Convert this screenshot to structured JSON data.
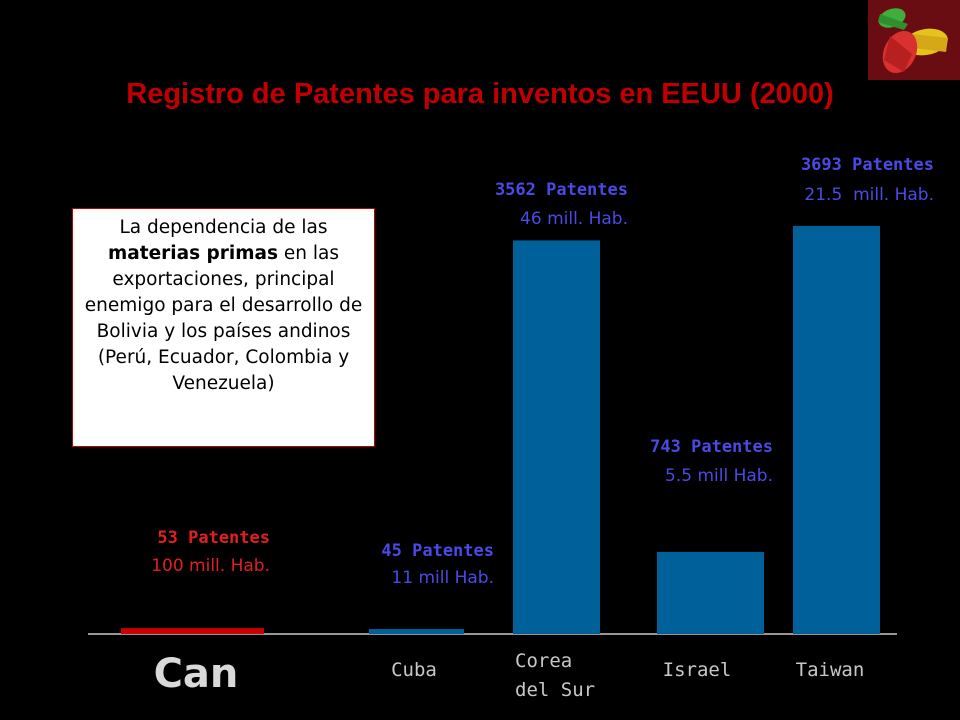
{
  "chart_data": {
    "type": "bar",
    "title": "Registro de Patentes para inventos en EEUU (2000)",
    "xlabel": "",
    "ylabel": "",
    "categories": [
      "Can",
      "Cuba",
      "Corea del Sur",
      "Israel",
      "Taiwan"
    ],
    "category_lines": [
      [
        "Can"
      ],
      [
        "Cuba"
      ],
      [
        "Corea",
        "del Sur"
      ],
      [
        "Israel"
      ],
      [
        "Taiwan"
      ]
    ],
    "values": [
      53,
      45,
      3562,
      743,
      3693
    ],
    "label_line1": [
      "53 Patentes",
      "45 Patentes",
      "3562 Patentes",
      "743 Patentes",
      "3693 Patentes"
    ],
    "label_line2": [
      "100 mill. Hab.",
      "11 mill Hab.",
      "46 mill. Hab.",
      "5.5 mill Hab.",
      "21.5  mill. Hab."
    ],
    "ylim": [
      0,
      4000
    ],
    "grid": false,
    "colors": {
      "can": "#cc0000",
      "others": "#00609a",
      "label_can": "#e02020",
      "label_others": "#4a4ae6",
      "category_text": "#c8c8c8",
      "axis": "#c8c8c8"
    }
  },
  "note": {
    "line1": "La dependencia de las",
    "bold": "materias primas",
    "line2_rest": " en las exportaciones,",
    "line3": "principal enemigo para el desarrollo de Bolivia y los países andinos (Perú, Ecuador, Colombia y Venezuela)"
  },
  "logo": {
    "icon": "hands-icon",
    "background": "#6a0d12"
  }
}
